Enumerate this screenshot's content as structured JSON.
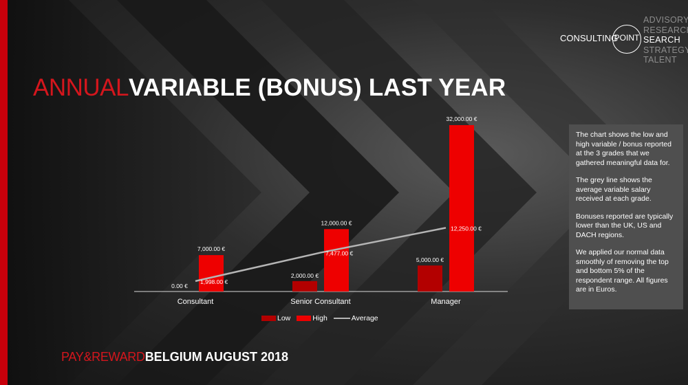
{
  "slide": {
    "title_thin": "ANNUAL",
    "title_bold": "VARIABLE (BONUS) LAST YEAR",
    "footer_thin": "PAY&REWARD",
    "footer_bold": "BELGIUM AUGUST 2018",
    "accent_color": "#c8000b"
  },
  "logo": {
    "left": "CONSULTING",
    "circle": "POINT",
    "items": [
      "ADVISORY",
      "RESEARCH",
      "SEARCH",
      "STRATEGY",
      "TALENT"
    ],
    "active": "SEARCH"
  },
  "info_box": {
    "paragraphs": [
      "The chart shows the low and high variable / bonus reported at the 3 grades that we gathered meaningful data for.",
      "The grey line shows the average variable salary received at each grade.",
      "Bonuses reported are typically lower than the UK, US and DACH regions.",
      "We applied our normal data smoothly of removing the top and bottom 5% of the respondent range. All figures are in Euros."
    ]
  },
  "chart_data": {
    "type": "bar",
    "categories": [
      "Consultant",
      "Senior Consultant",
      "Manager"
    ],
    "series": [
      {
        "name": "Low",
        "type": "bar",
        "color": "#b30000",
        "values": [
          0,
          2000,
          5000
        ],
        "labels": [
          "0.00 €",
          "2,000.00 €",
          "5,000.00 €"
        ]
      },
      {
        "name": "High",
        "type": "bar",
        "color": "#ee0000",
        "values": [
          7000,
          12000,
          32000
        ],
        "labels": [
          "7,000.00 €",
          "12,000.00 €",
          "32,000.00 €"
        ]
      },
      {
        "name": "Average",
        "type": "line",
        "color": "#b5b5b5",
        "values": [
          1998,
          7477,
          12250
        ],
        "labels": [
          "1,998.00 €",
          "7,477.00 €",
          "12,250.00 €"
        ]
      }
    ],
    "ylim": [
      0,
      32000
    ],
    "grid": false,
    "legend_position": "bottom",
    "xlabel": "",
    "ylabel": ""
  }
}
